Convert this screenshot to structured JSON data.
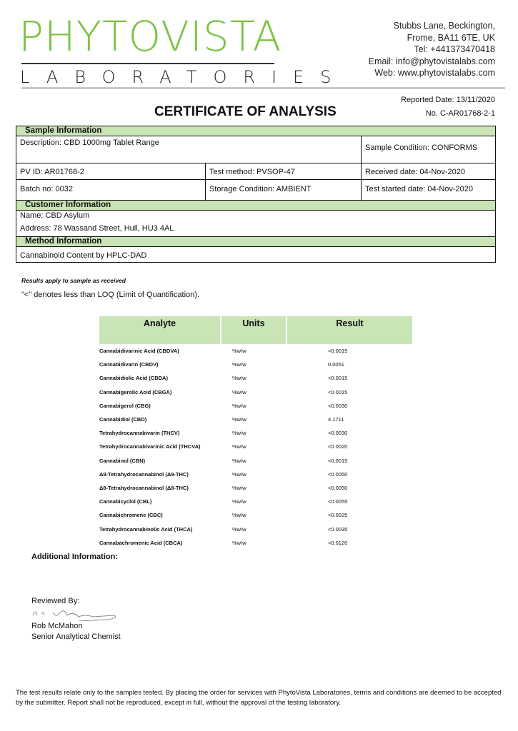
{
  "header": {
    "logo_main": "PHYTOVISTA",
    "logo_sub": "LABORATORIES",
    "address": [
      "Stubbs Lane, Beckington,",
      "Frome, BA11 6TE, UK",
      "Tel: +441373470418",
      "Email: info@phytovistalabs.com",
      "Web: www.phytovistalabs.com"
    ],
    "brand_color": "#7cc242"
  },
  "report": {
    "reported_date": "Reported Date: 13/11/2020",
    "number": "No. C-AR01768-2-1",
    "title": "CERTIFICATE OF ANALYSIS"
  },
  "sample": {
    "section": "Sample Information",
    "description": "Description: CBD 1000mg Tablet Range",
    "condition": "Sample Condition: CONFORMS",
    "pv_id": "PV ID: AR01768-2",
    "test_method": "Test method: PVSOP-47",
    "received": "Received date: 04-Nov-2020",
    "batch": "Batch no: 0032",
    "storage": "Storage Condition: AMBIENT",
    "started": "Test started date: 04-Nov-2020"
  },
  "customer": {
    "section": "Customer Information",
    "name": "Name:    CBD Asylum",
    "address": "Address:   78 Wassand Street, Hull, HU3 4AL"
  },
  "method": {
    "section": "Method Information",
    "text": "Cannabinoid Content by HPLC-DAD"
  },
  "notes": {
    "results_apply": "Results apply to sample as received",
    "loq": "\"<\" denotes less than LOQ (Limit of Quantification)."
  },
  "results": {
    "headers": [
      "Analyte",
      "Units",
      "Result"
    ],
    "rows": [
      [
        "Cannabidivarinic Acid (CBDVA)",
        "%w/w",
        "<0.0015"
      ],
      [
        "Cannabidivarin (CBDV)",
        "%w/w",
        "0.0051"
      ],
      [
        "Cannabidiolic Acid (CBDA)",
        "%w/w",
        "<0.0015"
      ],
      [
        "Cannabigerolic Acid (CBGA)",
        "%w/w",
        "<0.0015"
      ],
      [
        "Cannabigerol (CBG)",
        "%w/w",
        "<0.0030"
      ],
      [
        "Cannabidiol (CBD)",
        "%w/w",
        "4.1711"
      ],
      [
        "Tetrahydrocannabivarin (THCV)",
        "%w/w",
        "<0.0030"
      ],
      [
        "Tetrahydrocannabivarinic Acid (THCVA)",
        "%w/w",
        "<0.0020"
      ],
      [
        "Cannabinol (CBN)",
        "%w/w",
        "<0.0015"
      ],
      [
        "Δ9-Tetrahydrocannabinol (Δ9-THC)",
        "%w/w",
        "<0.0050"
      ],
      [
        "Δ8-Tetrahydrocannabinol (Δ8-THC)",
        "%w/w",
        "<0.0050"
      ],
      [
        "Cannabicyclol (CBL)",
        "%w/w",
        "<0.0055"
      ],
      [
        "Cannabichromene (CBC)",
        "%w/w",
        "<0.0025"
      ],
      [
        "Tetrahydrocannabinolic Acid (THCA)",
        "%w/w",
        "<0.0035"
      ],
      [
        "Cannabachromenic Acid (CBCA)",
        "%w/w",
        "<0.0120"
      ]
    ]
  },
  "additional": "Additional Information:",
  "review": {
    "label": "Reviewed By:",
    "name": "Rob McMahon",
    "role": "Senior Analytical Chemist"
  },
  "footer": "The test results relate only to the samples tested.  By placing the order for services with PhytoVista Laboratories, terms and conditions are deemed to be accepted by the submitter. Report shall not be reproduced, except in full, without the approval of the testing laboratory."
}
